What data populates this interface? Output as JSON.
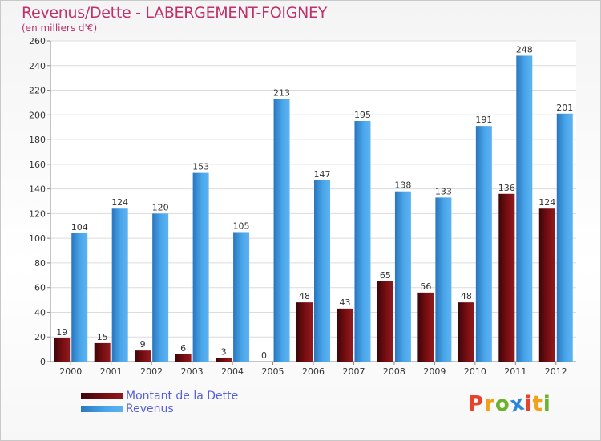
{
  "header": {
    "title": "Revenus/Dette - LABERGEMENT-FOIGNEY",
    "subtitle": "(en milliers d'€)"
  },
  "chart_data": {
    "type": "bar",
    "categories": [
      "2000",
      "2001",
      "2002",
      "2003",
      "2004",
      "2005",
      "2006",
      "2007",
      "2008",
      "2009",
      "2010",
      "2011",
      "2012"
    ],
    "series": [
      {
        "name": "Montant de la Dette",
        "color": "#7a0e12",
        "values": [
          19,
          15,
          9,
          6,
          3,
          0,
          48,
          43,
          65,
          56,
          48,
          136,
          124
        ]
      },
      {
        "name": "Revenus",
        "color": "#3d97e0",
        "values": [
          104,
          124,
          120,
          153,
          105,
          213,
          147,
          195,
          138,
          133,
          191,
          248,
          201
        ]
      }
    ],
    "ylim": [
      0,
      260
    ],
    "yticks": [
      0,
      20,
      40,
      60,
      80,
      100,
      120,
      140,
      160,
      180,
      200,
      220,
      240,
      260
    ],
    "grid": true,
    "legend": "bottom-left"
  },
  "logo": {
    "letters": [
      "P",
      "r",
      "o",
      "x",
      "i",
      "t",
      "i"
    ],
    "colors": [
      "#e8412c",
      "#f3a019",
      "#6bb32e",
      "#2a87d8",
      "#e8412c",
      "#f3a019",
      "#6bb32e"
    ]
  }
}
